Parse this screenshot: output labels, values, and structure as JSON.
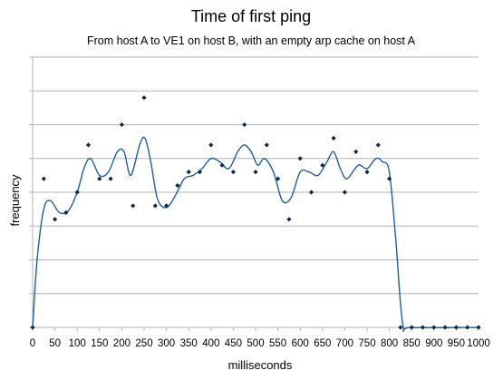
{
  "chart_data": {
    "type": "scatter",
    "title": "Time of first ping",
    "subtitle": "From host A to VE1 on host B, with an empty arp cache on host A",
    "xlabel": "milliseconds",
    "ylabel": "frequency",
    "xlim": [
      0,
      1000
    ],
    "ylim": [
      0,
      8
    ],
    "x_ticks": [
      "0",
      "50",
      "100",
      "150",
      "200",
      "250",
      "300",
      "350",
      "400",
      "450",
      "500",
      "550",
      "600",
      "650",
      "700",
      "750",
      "800",
      "850",
      "900",
      "950",
      "1000"
    ],
    "grid": "horizontal",
    "legend": "none",
    "marker_color": "#0b2a4a",
    "line_color": "#1f5f9a",
    "series": [
      {
        "style": "points",
        "points": [
          [
            0,
            0
          ],
          [
            25,
            4.4
          ],
          [
            50,
            3.2
          ],
          [
            75,
            3.4
          ],
          [
            100,
            4
          ],
          [
            125,
            5.4
          ],
          [
            150,
            4.4
          ],
          [
            175,
            4.4
          ],
          [
            200,
            6
          ],
          [
            225,
            3.6
          ],
          [
            250,
            6.8
          ],
          [
            275,
            3.6
          ],
          [
            300,
            3.6
          ],
          [
            325,
            4.2
          ],
          [
            350,
            4.6
          ],
          [
            375,
            4.6
          ],
          [
            400,
            5.4
          ],
          [
            425,
            4.8
          ],
          [
            450,
            4.6
          ],
          [
            475,
            6
          ],
          [
            500,
            4.6
          ],
          [
            525,
            5.4
          ],
          [
            550,
            4.4
          ],
          [
            575,
            3.2
          ],
          [
            600,
            5
          ],
          [
            625,
            4
          ],
          [
            650,
            4.8
          ],
          [
            675,
            5.6
          ],
          [
            700,
            4
          ],
          [
            725,
            5.2
          ],
          [
            750,
            4.6
          ],
          [
            775,
            5.4
          ],
          [
            800,
            4.4
          ],
          [
            825,
            0
          ],
          [
            850,
            0
          ],
          [
            875,
            0
          ],
          [
            900,
            0
          ],
          [
            925,
            0
          ],
          [
            950,
            0
          ],
          [
            975,
            0
          ],
          [
            1000,
            0
          ]
        ]
      },
      {
        "style": "smoothed-line",
        "points": [
          [
            0,
            0
          ],
          [
            10,
            2.0
          ],
          [
            25,
            3.5
          ],
          [
            40,
            3.75
          ],
          [
            60,
            3.4
          ],
          [
            80,
            3.45
          ],
          [
            100,
            4.0
          ],
          [
            115,
            4.7
          ],
          [
            130,
            5.0
          ],
          [
            150,
            4.5
          ],
          [
            170,
            4.6
          ],
          [
            190,
            5.2
          ],
          [
            205,
            5.2
          ],
          [
            220,
            4.5
          ],
          [
            240,
            5.4
          ],
          [
            252,
            5.6
          ],
          [
            265,
            4.9
          ],
          [
            280,
            3.8
          ],
          [
            300,
            3.55
          ],
          [
            320,
            3.9
          ],
          [
            340,
            4.4
          ],
          [
            360,
            4.5
          ],
          [
            380,
            4.7
          ],
          [
            400,
            5.0
          ],
          [
            420,
            4.9
          ],
          [
            440,
            4.7
          ],
          [
            460,
            5.2
          ],
          [
            475,
            5.4
          ],
          [
            490,
            5.2
          ],
          [
            505,
            4.8
          ],
          [
            520,
            5.0
          ],
          [
            540,
            4.6
          ],
          [
            560,
            3.75
          ],
          [
            580,
            3.85
          ],
          [
            600,
            4.6
          ],
          [
            620,
            4.6
          ],
          [
            640,
            4.5
          ],
          [
            660,
            4.9
          ],
          [
            675,
            5.2
          ],
          [
            690,
            4.7
          ],
          [
            705,
            4.4
          ],
          [
            730,
            4.8
          ],
          [
            750,
            4.7
          ],
          [
            770,
            5.0
          ],
          [
            785,
            4.9
          ],
          [
            800,
            4.6
          ],
          [
            815,
            2.5
          ],
          [
            830,
            0.1
          ],
          [
            850,
            0
          ],
          [
            1000,
            0
          ]
        ]
      }
    ]
  }
}
